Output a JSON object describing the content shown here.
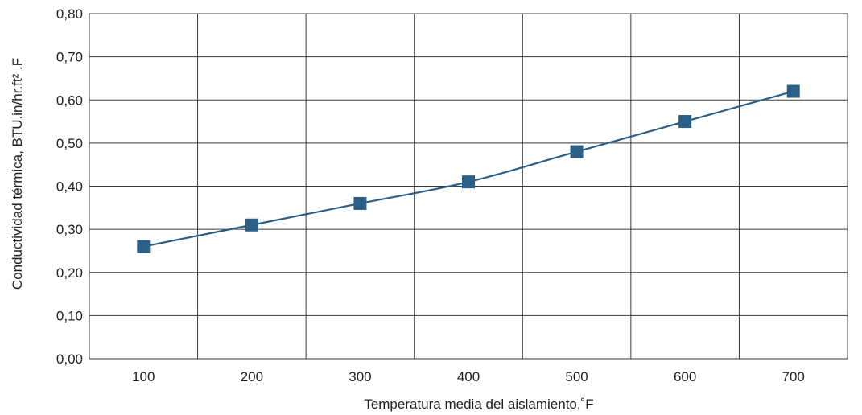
{
  "chart_data": {
    "type": "line",
    "title": "",
    "xlabel": "Temperatura media del aislamiento,˚F",
    "ylabel": "Conductividad térmica, BTU.in/hr.ft² .F",
    "x_ticks": [
      "100",
      "200",
      "300",
      "400",
      "500",
      "600",
      "700"
    ],
    "y_ticks": [
      "0,00",
      "0,10",
      "0,20",
      "0,30",
      "0,40",
      "0,50",
      "0,60",
      "0,70",
      "0,80"
    ],
    "ylim": [
      0,
      0.8
    ],
    "grid": true,
    "legend": "none",
    "series": [
      {
        "x": [
          100,
          200,
          300,
          400,
          500,
          600,
          700
        ],
        "values": [
          0.26,
          0.31,
          0.36,
          0.41,
          0.48,
          0.55,
          0.62
        ],
        "color": "#2b5f86",
        "marker": "square"
      }
    ]
  }
}
